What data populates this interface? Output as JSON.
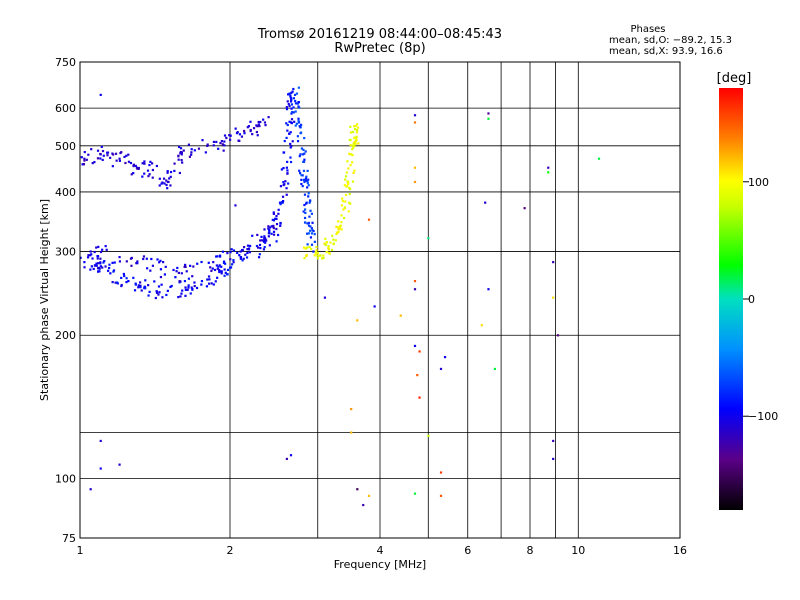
{
  "title": "Tromsø 20161219 08:44:00–08:45:43",
  "subtitle": "RwPretec (8p)",
  "info": {
    "heading": "Phases",
    "line1": "mean, sd,O: −89.2, 15.3",
    "line2": "mean, sd,X:  93.9, 16.6"
  },
  "colorbar": {
    "label": "[deg]",
    "min": -180,
    "max": 180,
    "ticks": [
      {
        "value": 100,
        "label": "100"
      },
      {
        "value": 0,
        "label": "0"
      },
      {
        "value": -100,
        "label": "−100"
      }
    ]
  },
  "chart_data": {
    "type": "scatter",
    "xlabel": "Frequency [MHz]",
    "ylabel": "Stationary phase Virtual Height [km]",
    "xscale": "log",
    "yscale": "log",
    "xlim": [
      1,
      16
    ],
    "ylim": [
      75,
      750
    ],
    "x_ticks": [
      {
        "value": 1,
        "label": "1"
      },
      {
        "value": 2,
        "label": "2"
      },
      {
        "value": 4,
        "label": "4"
      },
      {
        "value": 6,
        "label": "6"
      },
      {
        "value": 8,
        "label": "8"
      },
      {
        "value": 10,
        "label": "10"
      },
      {
        "value": 16,
        "label": "16"
      }
    ],
    "x_grid": [
      2,
      3,
      4,
      5,
      6,
      7,
      8,
      9,
      10
    ],
    "y_ticks": [
      {
        "value": 75,
        "label": "75"
      },
      {
        "value": 100,
        "label": "100"
      },
      {
        "value": 200,
        "label": "200"
      },
      {
        "value": 300,
        "label": "300"
      },
      {
        "value": 400,
        "label": "400"
      },
      {
        "value": 500,
        "label": "500"
      },
      {
        "value": 600,
        "label": "600"
      },
      {
        "value": 750,
        "label": "750"
      }
    ],
    "y_grid": [
      100,
      125,
      200,
      300,
      400,
      500,
      600
    ],
    "grid": true,
    "series": [
      {
        "trace": "ordinary-lower",
        "phase": -95,
        "points": [
          [
            1.02,
            285
          ],
          [
            1.08,
            280
          ],
          [
            1.15,
            270
          ],
          [
            1.25,
            260
          ],
          [
            1.35,
            252
          ],
          [
            1.5,
            248
          ],
          [
            1.65,
            252
          ],
          [
            1.8,
            262
          ],
          [
            1.95,
            275
          ],
          [
            2.1,
            292
          ],
          [
            2.3,
            305
          ],
          [
            2.45,
            330
          ],
          [
            2.55,
            380
          ],
          [
            2.6,
            450
          ],
          [
            2.63,
            530
          ],
          [
            2.65,
            620
          ],
          [
            2.67,
            650
          ]
        ]
      },
      {
        "trace": "ordinary-scatter-lower",
        "phase": -105,
        "points": [
          [
            1.05,
            300
          ],
          [
            1.2,
            292
          ],
          [
            1.4,
            280
          ],
          [
            1.6,
            270
          ],
          [
            1.85,
            285
          ],
          [
            2.1,
            300
          ],
          [
            2.35,
            320
          ],
          [
            2.5,
            360
          ]
        ]
      },
      {
        "trace": "ordinary-upper",
        "phase": -110,
        "points": [
          [
            1.02,
            470
          ],
          [
            1.1,
            480
          ],
          [
            1.2,
            470
          ],
          [
            1.3,
            450
          ],
          [
            1.4,
            445
          ],
          [
            1.5,
            420
          ],
          [
            1.6,
            480
          ],
          [
            1.8,
            500
          ],
          [
            2.0,
            515
          ],
          [
            2.2,
            540
          ],
          [
            2.35,
            560
          ]
        ]
      },
      {
        "trace": "ordinary-stack",
        "phase": -75,
        "points": [
          [
            2.7,
            640
          ],
          [
            2.75,
            560
          ],
          [
            2.8,
            480
          ],
          [
            2.82,
            420
          ],
          [
            2.85,
            380
          ],
          [
            2.88,
            340
          ],
          [
            2.92,
            310
          ]
        ]
      },
      {
        "trace": "extraordinary",
        "phase": 95,
        "points": [
          [
            2.85,
            295
          ],
          [
            3.0,
            298
          ],
          [
            3.15,
            305
          ],
          [
            3.3,
            330
          ],
          [
            3.4,
            370
          ],
          [
            3.45,
            420
          ],
          [
            3.5,
            480
          ],
          [
            3.55,
            520
          ],
          [
            3.55,
            550
          ]
        ]
      }
    ],
    "isolated_points": [
      {
        "x": 4.7,
        "y": 580,
        "phase": -110
      },
      {
        "x": 4.7,
        "y": 560,
        "phase": 140
      },
      {
        "x": 4.7,
        "y": 450,
        "phase": 120
      },
      {
        "x": 4.7,
        "y": 420,
        "phase": 130
      },
      {
        "x": 4.7,
        "y": 260,
        "phase": 150
      },
      {
        "x": 4.7,
        "y": 250,
        "phase": -120
      },
      {
        "x": 4.7,
        "y": 190,
        "phase": -100
      },
      {
        "x": 4.8,
        "y": 185,
        "phase": 160
      },
      {
        "x": 4.75,
        "y": 165,
        "phase": 150
      },
      {
        "x": 4.8,
        "y": 148,
        "phase": 170
      },
      {
        "x": 5.0,
        "y": 123,
        "phase": 80
      },
      {
        "x": 4.7,
        "y": 93,
        "phase": 20
      },
      {
        "x": 5.3,
        "y": 92,
        "phase": 150
      },
      {
        "x": 5.3,
        "y": 103,
        "phase": 160
      },
      {
        "x": 5.0,
        "y": 320,
        "phase": 10
      },
      {
        "x": 5.3,
        "y": 170,
        "phase": -110
      },
      {
        "x": 5.4,
        "y": 180,
        "phase": -100
      },
      {
        "x": 6.6,
        "y": 585,
        "phase": -130
      },
      {
        "x": 6.6,
        "y": 570,
        "phase": 20
      },
      {
        "x": 6.5,
        "y": 380,
        "phase": -110
      },
      {
        "x": 6.6,
        "y": 250,
        "phase": -100
      },
      {
        "x": 6.4,
        "y": 210,
        "phase": 110
      },
      {
        "x": 6.8,
        "y": 170,
        "phase": 20
      },
      {
        "x": 7.8,
        "y": 370,
        "phase": -140
      },
      {
        "x": 8.7,
        "y": 450,
        "phase": -120
      },
      {
        "x": 8.7,
        "y": 440,
        "phase": 30
      },
      {
        "x": 8.9,
        "y": 285,
        "phase": -120
      },
      {
        "x": 8.9,
        "y": 240,
        "phase": 110
      },
      {
        "x": 9.1,
        "y": 200,
        "phase": -140
      },
      {
        "x": 8.9,
        "y": 120,
        "phase": -120
      },
      {
        "x": 8.9,
        "y": 110,
        "phase": -110
      },
      {
        "x": 11.0,
        "y": 470,
        "phase": 20
      },
      {
        "x": 2.05,
        "y": 375,
        "phase": -110
      },
      {
        "x": 2.6,
        "y": 110,
        "phase": -120
      },
      {
        "x": 2.65,
        "y": 112,
        "phase": -100
      },
      {
        "x": 3.1,
        "y": 240,
        "phase": -110
      },
      {
        "x": 3.5,
        "y": 140,
        "phase": 130
      },
      {
        "x": 3.5,
        "y": 125,
        "phase": 120
      },
      {
        "x": 3.6,
        "y": 95,
        "phase": -150
      },
      {
        "x": 3.7,
        "y": 88,
        "phase": -120
      },
      {
        "x": 3.8,
        "y": 92,
        "phase": 120
      },
      {
        "x": 3.6,
        "y": 215,
        "phase": 120
      },
      {
        "x": 3.9,
        "y": 230,
        "phase": -100
      },
      {
        "x": 4.4,
        "y": 220,
        "phase": 120
      },
      {
        "x": 3.8,
        "y": 350,
        "phase": 150
      },
      {
        "x": 1.1,
        "y": 120,
        "phase": -110
      },
      {
        "x": 1.1,
        "y": 105,
        "phase": -100
      },
      {
        "x": 1.2,
        "y": 107,
        "phase": -110
      },
      {
        "x": 1.05,
        "y": 95,
        "phase": -110
      },
      {
        "x": 1.1,
        "y": 640,
        "phase": -100
      }
    ]
  }
}
